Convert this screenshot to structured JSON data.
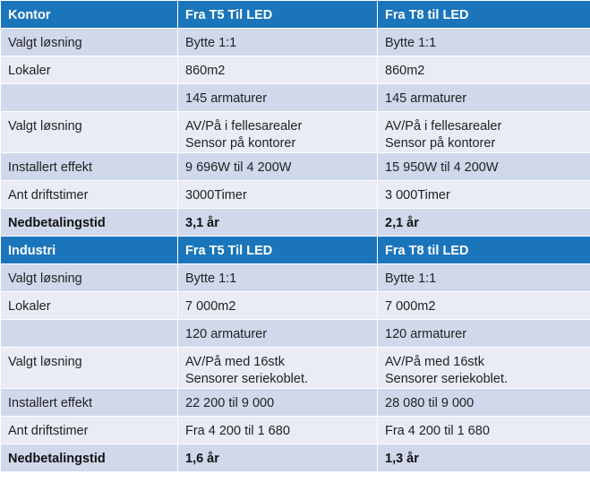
{
  "tables": [
    {
      "header": [
        "Kontor",
        "Fra T5 Til LED",
        "Fra T8 til LED"
      ],
      "rows": [
        [
          "Valgt løsning",
          "Bytte 1:1",
          "Bytte 1:1"
        ],
        [
          "Lokaler",
          "860m2",
          "860m2"
        ],
        [
          null,
          "145 armaturer",
          "145 armaturer"
        ],
        [
          "Valgt løsning",
          "AV/På i fellesarealer\nSensor på kontorer",
          "AV/På i fellesarealer\nSensor på kontorer"
        ],
        [
          "Installert effekt",
          "9 696W til 4 200W",
          "15 950W til 4 200W"
        ],
        [
          "Ant driftstimer",
          "3000Timer",
          "3 000Timer"
        ],
        [
          "Nedbetalingstid",
          "3,1 år",
          "2,1 år"
        ]
      ]
    },
    {
      "header": [
        "Industri",
        "Fra T5 Til LED",
        "Fra T8 til LED"
      ],
      "rows": [
        [
          "Valgt løsning",
          "Bytte 1:1",
          "Bytte 1:1"
        ],
        [
          "Lokaler",
          "7 000m2",
          "7 000m2"
        ],
        [
          null,
          "120 armaturer",
          "120 armaturer"
        ],
        [
          "Valgt løsning",
          "AV/På med 16stk\nSensorer seriekoblet.",
          "AV/På med 16stk\nSensorer seriekoblet."
        ],
        [
          "Installert effekt",
          "22 200 til 9 000",
          "28 080 til 9 000"
        ],
        [
          "Ant driftstimer",
          "Fra 4 200 til 1 680",
          "Fra 4 200 til 1 680"
        ],
        [
          "Nedbetalingstid",
          "1,6 år",
          "1,3 år"
        ]
      ]
    }
  ]
}
